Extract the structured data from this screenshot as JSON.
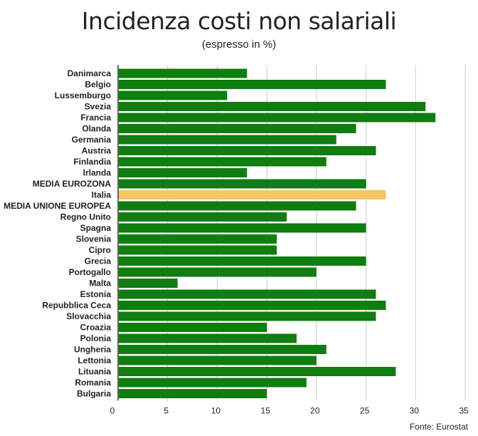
{
  "chart_data": {
    "type": "bar",
    "orientation": "horizontal",
    "title": "Incidenza costi non salariali",
    "subtitle": "(espresso in %)",
    "source": "Fonte: Eurostat",
    "categories": [
      "Danimarca",
      "Belgio",
      "Lussemburgo",
      "Svezia",
      "Francia",
      "Olanda",
      "Germania",
      "Austria",
      "Finlandia",
      "Irlanda",
      "MEDIA EUROZONA",
      "Italia",
      "MEDIA UNIONE EUROPEA",
      "Regno Unito",
      "Spagna",
      "Slovenia",
      "Cipro",
      "Grecia",
      "Portogallo",
      "Malta",
      "Estonia",
      "Repubblica Ceca",
      "Slovacchia",
      "Croazia",
      "Polonia",
      "Ungheria",
      "Lettonia",
      "Lituania",
      "Romania",
      "Bulgaria"
    ],
    "values": [
      13,
      27,
      11,
      31,
      32,
      24,
      22,
      26,
      21,
      13,
      25,
      27,
      24,
      17,
      25,
      16,
      16,
      25,
      20,
      6,
      26,
      27,
      26,
      15,
      18,
      21,
      20,
      28,
      19,
      15
    ],
    "highlight": "Italia",
    "xlim": [
      0,
      35
    ],
    "xticks": [
      0,
      5,
      10,
      15,
      20,
      25,
      30,
      35
    ],
    "grid": true,
    "colors": {
      "bar": "#0f7d0f",
      "highlight": "#f2c661",
      "grid": "#cccccc",
      "axis": "#333333"
    }
  }
}
